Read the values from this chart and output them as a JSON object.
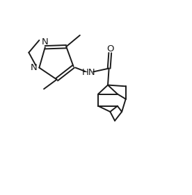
{
  "bg_color": "#ffffff",
  "line_color": "#1a1a1a",
  "lw": 1.4,
  "fs": 9.5,
  "figsize": [
    2.76,
    2.81
  ],
  "dpi": 100,
  "xlim": [
    0,
    10
  ],
  "ylim": [
    0,
    10.2
  ]
}
